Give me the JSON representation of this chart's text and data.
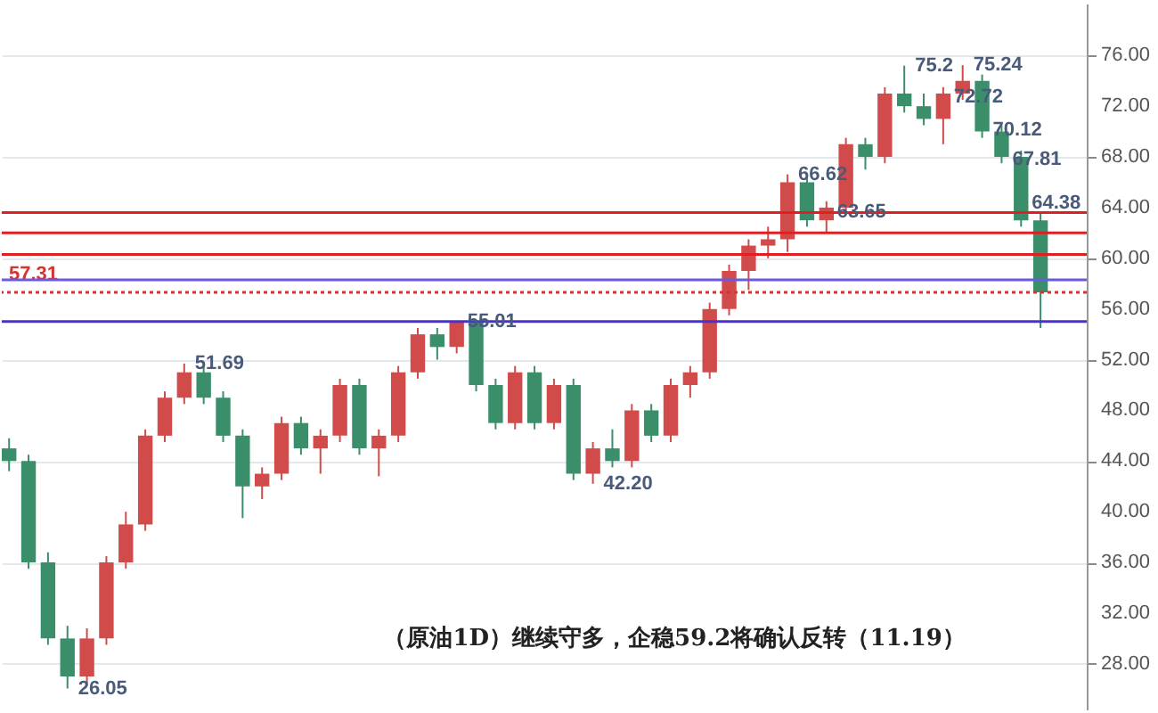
{
  "chart_data": {
    "type": "candlestick",
    "categories": [
      null,
      null,
      null,
      null,
      null,
      null,
      null,
      null,
      null,
      null,
      null,
      null,
      null,
      null,
      null,
      null,
      null,
      null,
      null,
      null,
      null,
      null,
      null,
      null,
      null,
      null,
      null,
      null,
      null,
      null,
      null,
      null,
      null,
      null,
      null,
      null,
      null,
      null,
      null,
      null,
      null,
      null,
      null,
      null,
      null,
      null,
      null,
      null,
      null,
      null,
      null,
      null,
      null,
      null
    ],
    "ohlc": [
      [
        45,
        45.8,
        43.2,
        44
      ],
      [
        44,
        44.5,
        35.5,
        36
      ],
      [
        36,
        36.8,
        29.5,
        30
      ],
      [
        30,
        31,
        26.05,
        27
      ],
      [
        27,
        30.8,
        26.5,
        30
      ],
      [
        30,
        36.5,
        29.5,
        36
      ],
      [
        36,
        40,
        35.5,
        39
      ],
      [
        39,
        46.5,
        38.5,
        46
      ],
      [
        46,
        49.5,
        45.5,
        49
      ],
      [
        49,
        51.69,
        48.5,
        51
      ],
      [
        51,
        51.5,
        48.5,
        49
      ],
      [
        49,
        49.5,
        45.5,
        46
      ],
      [
        46,
        46.5,
        39.5,
        42
      ],
      [
        42,
        43.5,
        41,
        43
      ],
      [
        43,
        47.5,
        42.5,
        47
      ],
      [
        47,
        47.5,
        44.5,
        45
      ],
      [
        45,
        46.5,
        43,
        46
      ],
      [
        46,
        50.5,
        45.5,
        50
      ],
      [
        50,
        50.5,
        44.5,
        45
      ],
      [
        45,
        46.5,
        42.8,
        46
      ],
      [
        46,
        51.5,
        45.5,
        51
      ],
      [
        51,
        54.5,
        50.5,
        54
      ],
      [
        54,
        54.5,
        52,
        53
      ],
      [
        53,
        55.01,
        52.5,
        55
      ],
      [
        55,
        55,
        49.5,
        50
      ],
      [
        50,
        50.5,
        46.5,
        47
      ],
      [
        47,
        51.5,
        46.5,
        51
      ],
      [
        51,
        51.5,
        46.5,
        47
      ],
      [
        47,
        50.5,
        46.5,
        50
      ],
      [
        50,
        50.5,
        42.5,
        43
      ],
      [
        43,
        45.5,
        42.2,
        45
      ],
      [
        45,
        46.5,
        43.5,
        44
      ],
      [
        44,
        48.5,
        43.5,
        48
      ],
      [
        48,
        48.5,
        45.5,
        46
      ],
      [
        46,
        50.5,
        45.5,
        50
      ],
      [
        50,
        51.5,
        49,
        51
      ],
      [
        51,
        56.5,
        50.5,
        56
      ],
      [
        56,
        59.5,
        55.5,
        59
      ],
      [
        59,
        61.5,
        57.5,
        61
      ],
      [
        61,
        62.5,
        60,
        61.5
      ],
      [
        61.5,
        66.62,
        60.5,
        66
      ],
      [
        66,
        66.5,
        62.5,
        63
      ],
      [
        63,
        64.5,
        62,
        64
      ],
      [
        64,
        69.5,
        63.5,
        69
      ],
      [
        69,
        69.5,
        67,
        68
      ],
      [
        68,
        73.5,
        67.5,
        73
      ],
      [
        73,
        75.2,
        71.5,
        72
      ],
      [
        72,
        73,
        70.5,
        71
      ],
      [
        71,
        73.5,
        69,
        73
      ],
      [
        73,
        75.24,
        72.5,
        74
      ],
      [
        74,
        74.5,
        69.5,
        70
      ],
      [
        70,
        70.5,
        67.5,
        68
      ],
      [
        68,
        68.5,
        62.5,
        63
      ],
      [
        63,
        63.5,
        54.5,
        57.31
      ]
    ],
    "colors": [
      "#3a8f6a",
      "#3a8f6a",
      "#3a8f6a",
      "#3a8f6a",
      "#d24b4b",
      "#d24b4b",
      "#d24b4b",
      "#d24b4b",
      "#d24b4b",
      "#d24b4b",
      "#3a8f6a",
      "#3a8f6a",
      "#3a8f6a",
      "#d24b4b",
      "#d24b4b",
      "#3a8f6a",
      "#d24b4b",
      "#d24b4b",
      "#3a8f6a",
      "#d24b4b",
      "#d24b4b",
      "#d24b4b",
      "#3a8f6a",
      "#d24b4b",
      "#3a8f6a",
      "#3a8f6a",
      "#d24b4b",
      "#3a8f6a",
      "#d24b4b",
      "#3a8f6a",
      "#d24b4b",
      "#3a8f6a",
      "#d24b4b",
      "#3a8f6a",
      "#d24b4b",
      "#d24b4b",
      "#d24b4b",
      "#d24b4b",
      "#d24b4b",
      "#d24b4b",
      "#d24b4b",
      "#3a8f6a",
      "#d24b4b",
      "#d24b4b",
      "#3a8f6a",
      "#d24b4b",
      "#3a8f6a",
      "#3a8f6a",
      "#d24b4b",
      "#d24b4b",
      "#3a8f6a",
      "#3a8f6a",
      "#3a8f6a",
      "#3a8f6a"
    ],
    "value_labels": [
      null,
      null,
      null,
      "26.05",
      null,
      null,
      null,
      null,
      null,
      "51.69",
      null,
      null,
      null,
      null,
      null,
      null,
      null,
      null,
      null,
      null,
      null,
      null,
      null,
      "55.01",
      null,
      null,
      null,
      null,
      null,
      null,
      "42.20",
      null,
      null,
      null,
      null,
      null,
      null,
      null,
      null,
      null,
      "66.62",
      null,
      "63.65",
      null,
      null,
      null,
      "75.2",
      null,
      "72.72",
      "75.24",
      "70.12",
      "67.81",
      "64.38",
      null
    ],
    "ylim": [
      24.4,
      80.1
    ],
    "yticks": [
      {
        "value": 28,
        "label": "28.00"
      },
      {
        "value": 32,
        "label": "32.00"
      },
      {
        "value": 36,
        "label": "36.00"
      },
      {
        "value": 40,
        "label": "40.00"
      },
      {
        "value": 44,
        "label": "44.00"
      },
      {
        "value": 48,
        "label": "48.00"
      },
      {
        "value": 52,
        "label": "52.00"
      },
      {
        "value": 56,
        "label": "56.00"
      },
      {
        "value": 60,
        "label": "60.00"
      },
      {
        "value": 64,
        "label": "64.00"
      },
      {
        "value": 68,
        "label": "68.00"
      },
      {
        "value": 72,
        "label": "72.00"
      },
      {
        "value": 76,
        "label": "76.00"
      }
    ],
    "ref_lines": [
      {
        "axis": "y",
        "value": 55.01,
        "color": "#4b2fd6",
        "line_style": "solid"
      },
      {
        "axis": "y",
        "value": 57.31,
        "label": "57.31",
        "color": "#d93030",
        "line_style": "dotted"
      },
      {
        "axis": "y",
        "value": 58.3,
        "color": "#6a5ae0",
        "line_style": "solid"
      },
      {
        "axis": "y",
        "value": 60.3,
        "color": "#e02020",
        "line_style": "solid"
      },
      {
        "axis": "y",
        "value": 62,
        "color": "#e02020",
        "line_style": "solid"
      },
      {
        "axis": "y",
        "value": 63.6,
        "color": "#e02020",
        "line_style": "solid"
      }
    ],
    "annotations": [
      "（原油1D）继续守多，企稳59.2将确认反转（11.19）"
    ],
    "grid": "y"
  }
}
